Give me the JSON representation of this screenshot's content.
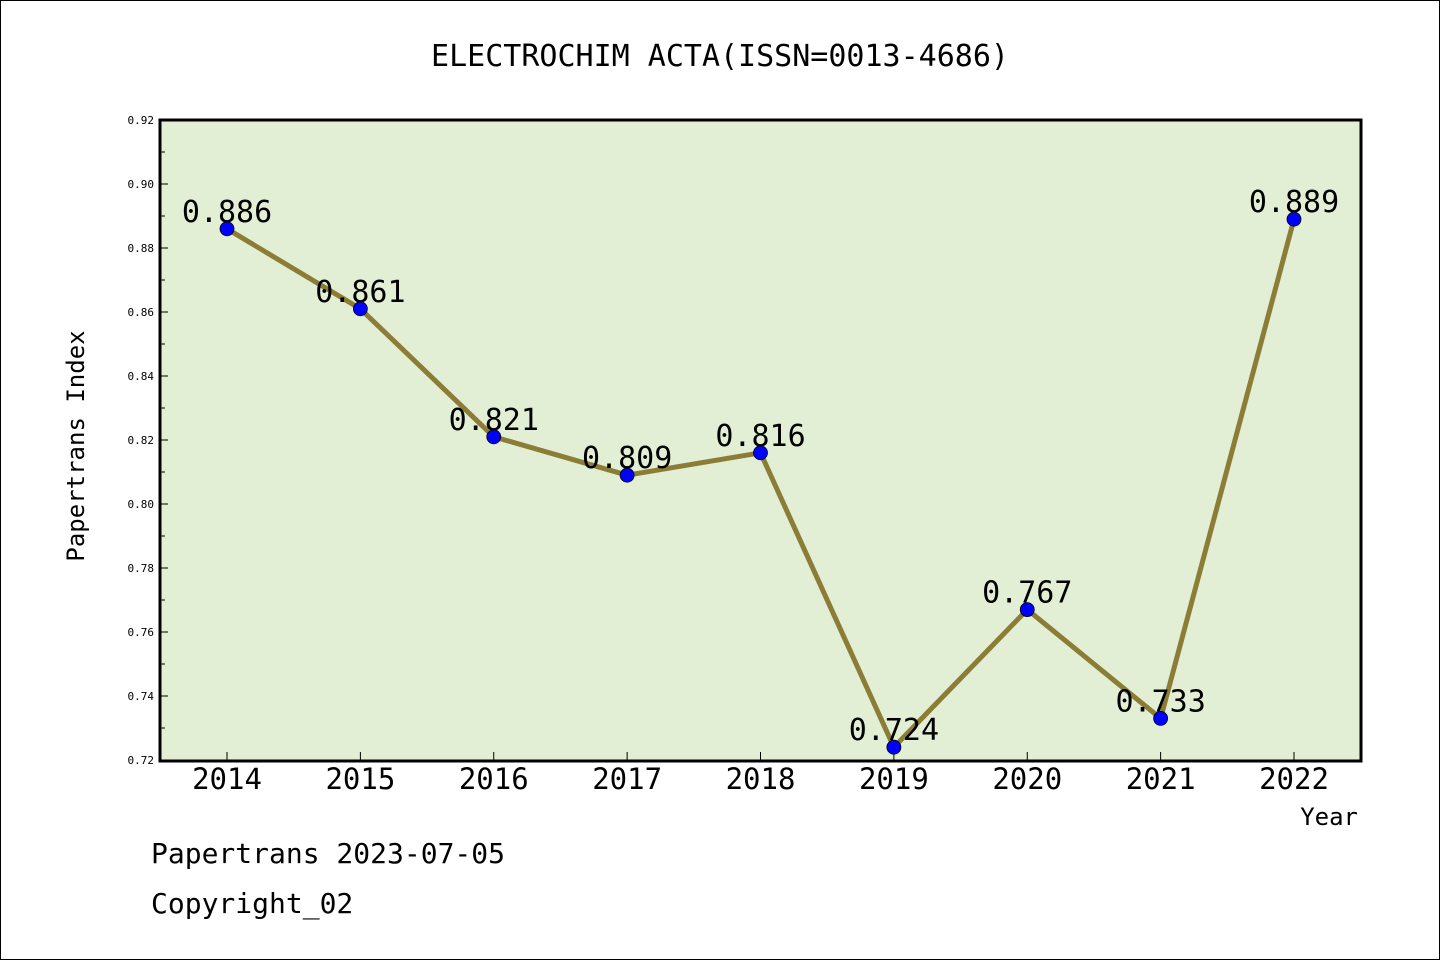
{
  "chart_data": {
    "type": "line",
    "title": "ELECTROCHIM ACTA(ISSN=0013-4686)",
    "xlabel": "Year",
    "ylabel": "Papertrans Index",
    "categories": [
      "2014",
      "2015",
      "2016",
      "2017",
      "2018",
      "2019",
      "2020",
      "2021",
      "2022"
    ],
    "series": [
      {
        "values": [
          0.886,
          0.861,
          0.821,
          0.809,
          0.816,
          0.724,
          0.767,
          0.733,
          0.889
        ],
        "data_labels": [
          "0.886",
          "0.861",
          "0.821",
          "0.809",
          "0.816",
          "0.724",
          "0.767",
          "0.733",
          "0.889"
        ]
      }
    ],
    "ylim": [
      0.72,
      0.92
    ],
    "yticks": [
      "0.72",
      "0.74",
      "0.76",
      "0.78",
      "0.80",
      "0.82",
      "0.84",
      "0.86",
      "0.88",
      "0.90",
      "0.92"
    ],
    "grid": false,
    "colors": {
      "plot_background": "#e2efd5",
      "line": "#8b7d35",
      "marker": "#0000ff"
    }
  },
  "footer": {
    "source": "Papertrans 2023-07-05",
    "copyright": "Copyright_02"
  }
}
